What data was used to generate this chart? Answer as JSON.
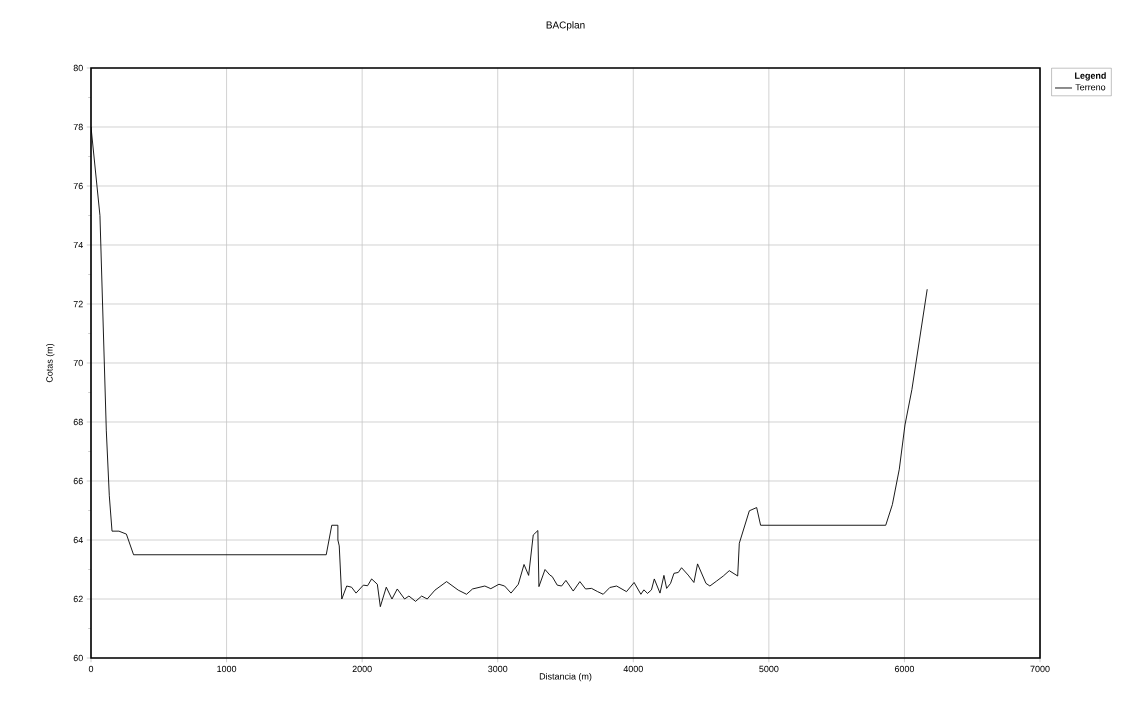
{
  "chart_data": {
    "type": "line",
    "title": "BACplan",
    "xlabel": "Distancia (m)",
    "ylabel": "Cotas (m)",
    "legend_title": "Legend",
    "xlim": [
      0,
      7000
    ],
    "ylim": [
      60,
      80
    ],
    "xticks": [
      0,
      1000,
      2000,
      3000,
      4000,
      5000,
      6000,
      7000
    ],
    "yticks": [
      60,
      62,
      64,
      66,
      68,
      70,
      72,
      74,
      76,
      78,
      80
    ],
    "grid": true,
    "legend": "top right",
    "series": [
      {
        "name": "Terreno",
        "color": "#000000",
        "x": [
          0,
          66,
          113,
          135,
          155,
          206,
          261,
          314,
          1735,
          1776,
          1821,
          1821,
          1831,
          1850,
          1886,
          1922,
          1955,
          2009,
          2040,
          2070,
          2112,
          2134,
          2178,
          2220,
          2259,
          2313,
          2345,
          2394,
          2439,
          2480,
          2537,
          2623,
          2709,
          2770,
          2814,
          2905,
          2949,
          3009,
          3051,
          3098,
          3152,
          3194,
          3228,
          3262,
          3296,
          3304,
          3349,
          3385,
          3402,
          3439,
          3471,
          3503,
          3557,
          3606,
          3648,
          3692,
          3737,
          3778,
          3827,
          3877,
          3950,
          4006,
          4056,
          4078,
          4105,
          4134,
          4155,
          4197,
          4226,
          4246,
          4275,
          4300,
          4332,
          4356,
          4405,
          4447,
          4474,
          4536,
          4565,
          4615,
          4664,
          4708,
          4770,
          4782,
          4856,
          4910,
          4939,
          4959,
          5862,
          5911,
          5962,
          6004,
          6055,
          6168
        ],
        "values": [
          78.0,
          75.0,
          67.7,
          65.5,
          64.3,
          64.3,
          64.2,
          63.5,
          63.5,
          64.5,
          64.5,
          64.0,
          63.8,
          62.0,
          62.44,
          62.4,
          62.2,
          62.47,
          62.45,
          62.68,
          62.5,
          61.74,
          62.4,
          62.0,
          62.34,
          62.0,
          62.1,
          61.92,
          62.1,
          62.0,
          62.3,
          62.59,
          62.3,
          62.16,
          62.34,
          62.44,
          62.35,
          62.5,
          62.44,
          62.2,
          62.5,
          63.17,
          62.8,
          64.17,
          64.32,
          62.42,
          63.0,
          62.81,
          62.76,
          62.47,
          62.44,
          62.63,
          62.27,
          62.59,
          62.34,
          62.36,
          62.25,
          62.16,
          62.39,
          62.44,
          62.25,
          62.56,
          62.16,
          62.31,
          62.19,
          62.31,
          62.68,
          62.2,
          62.8,
          62.36,
          62.53,
          62.87,
          62.9,
          63.06,
          62.81,
          62.56,
          63.19,
          62.53,
          62.44,
          62.61,
          62.78,
          62.96,
          62.78,
          63.89,
          64.99,
          65.1,
          64.5,
          64.5,
          64.5,
          65.2,
          66.4,
          67.9,
          69.1,
          72.5
        ]
      }
    ]
  }
}
